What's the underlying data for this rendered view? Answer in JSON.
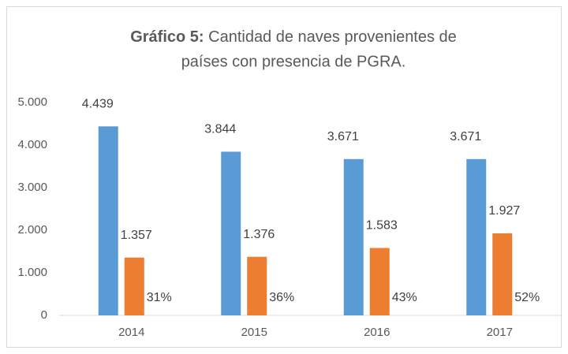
{
  "chart_data": {
    "type": "bar",
    "title_label": "Gráfico 5:",
    "title": [
      "Cantidad de naves provenientes de",
      "países con presencia de  PGRA."
    ],
    "categories": [
      "2014",
      "2015",
      "2016",
      "2017"
    ],
    "series": [
      {
        "color": "#5b9bd5",
        "values": [
          4439,
          3844,
          3671,
          3671
        ],
        "value_labels": [
          "4.439",
          "3.844",
          "3.671",
          "3.671"
        ]
      },
      {
        "color": "#ed7d31",
        "values": [
          1357,
          1376,
          1583,
          1927
        ],
        "value_labels": [
          "1.357",
          "1.376",
          "1.583",
          "1.927"
        ]
      }
    ],
    "percent_labels": [
      "31%",
      "36%",
      "43%",
      "52%"
    ],
    "ylim": [
      0,
      5000
    ],
    "yticks": [
      0,
      {
        "value": 1000,
        "label": "1.000"
      },
      {
        "value": 2000,
        "label": "2.000"
      },
      {
        "value": 3000,
        "label": "3.000"
      },
      {
        "value": 4000,
        "label": "4.000"
      },
      {
        "value": 5000,
        "label": "5.000"
      }
    ],
    "grid": false
  }
}
